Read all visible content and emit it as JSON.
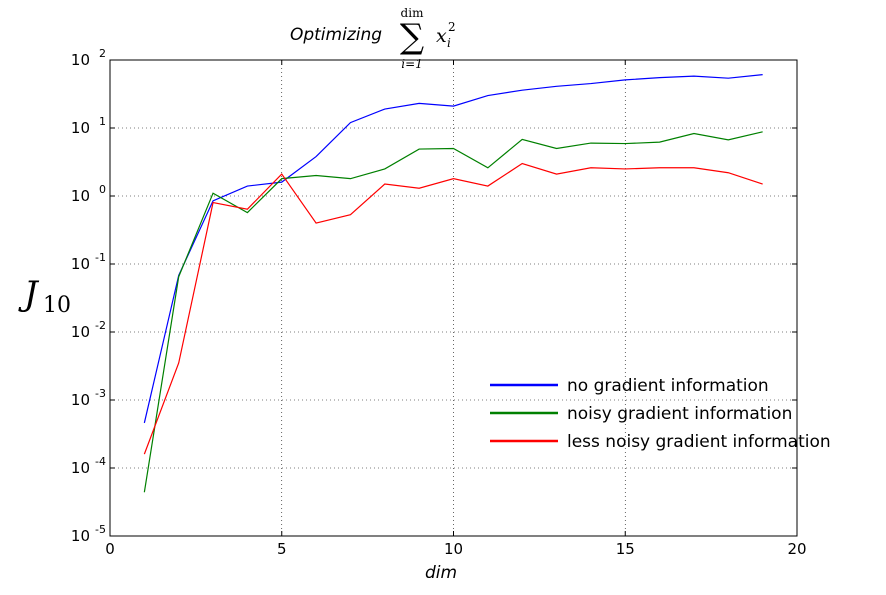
{
  "chart_data": {
    "type": "line",
    "title_text": "Optimizing",
    "title_math": {
      "sum_symbol": "∑",
      "upper_limit": "dim",
      "lower_limit": "i=1",
      "term_base": "x",
      "term_sub": "i",
      "term_sup": "2"
    },
    "xlabel": "dim",
    "ylabel_base": "J",
    "ylabel_sub": "10",
    "x_scale": "linear",
    "y_scale": "log",
    "xlim": [
      0,
      20
    ],
    "ylim_exponents": [
      -5,
      2
    ],
    "x_ticks": [
      "0",
      "5",
      "10",
      "15",
      "20"
    ],
    "x_tick_values": [
      0,
      5,
      10,
      15,
      20
    ],
    "y_tick_base": "10",
    "y_tick_exponents": [
      "-5",
      "-4",
      "-3",
      "-2",
      "-1",
      "0",
      "1",
      "2"
    ],
    "y_tick_values": [
      -5,
      -4,
      -3,
      -2,
      -1,
      0,
      1,
      2
    ],
    "grid": true,
    "legend_position": "lower-right",
    "x": [
      1,
      2,
      3,
      4,
      5,
      6,
      7,
      8,
      9,
      10,
      11,
      12,
      13,
      14,
      15,
      16,
      17,
      18,
      19
    ],
    "series": [
      {
        "name": "no gradient information",
        "color": "#0000ff",
        "values": [
          0.00046,
          0.068,
          0.85,
          1.4,
          1.6,
          3.8,
          12,
          19,
          23,
          21,
          30,
          36,
          41,
          45,
          51,
          55,
          58,
          54,
          61
        ]
      },
      {
        "name": "noisy gradient information",
        "color": "#008000",
        "values": [
          4.4e-05,
          0.065,
          1.1,
          0.57,
          1.8,
          2.0,
          1.8,
          2.5,
          4.9,
          5.0,
          2.6,
          6.8,
          5.0,
          6.0,
          5.9,
          6.2,
          8.3,
          6.7,
          8.8
        ]
      },
      {
        "name": "less noisy gradient information",
        "color": "#ff0000",
        "values": [
          0.00016,
          0.0035,
          0.8,
          0.64,
          2.1,
          0.4,
          0.53,
          1.5,
          1.3,
          1.8,
          1.4,
          3.0,
          2.1,
          2.6,
          2.5,
          2.6,
          2.6,
          2.2,
          1.5
        ]
      }
    ]
  }
}
